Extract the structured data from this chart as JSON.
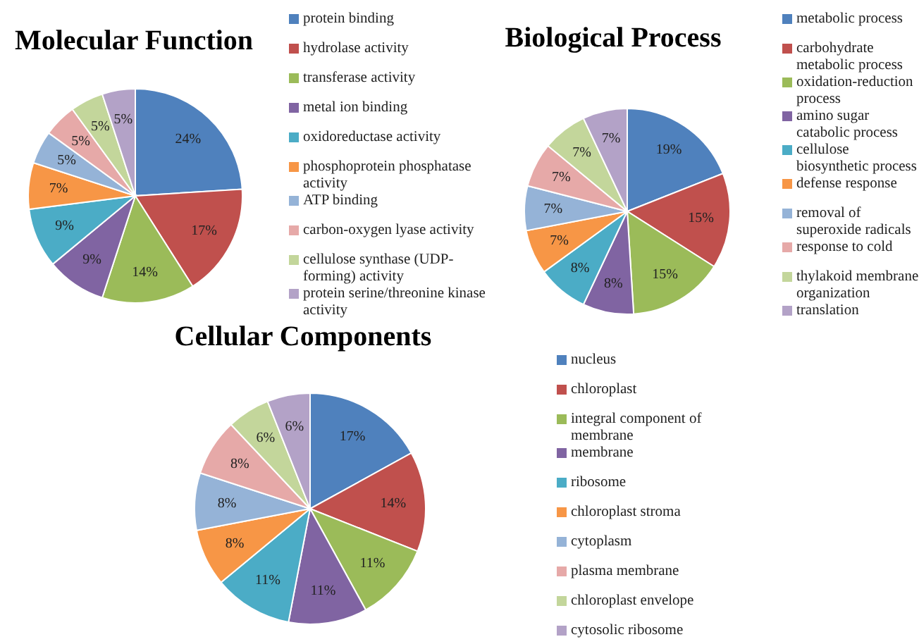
{
  "chart_data": [
    {
      "type": "pie",
      "title": "Molecular Function",
      "categories": [
        "protein binding",
        "hydrolase activity",
        "transferase activity",
        "metal ion binding",
        "oxidoreductase activity",
        "phosphoprotein phosphatase activity",
        "ATP binding",
        "carbon-oxygen lyase activity",
        "cellulose synthase (UDP-forming) activity",
        "protein serine/threonine kinase activity"
      ],
      "values": [
        24,
        17,
        14,
        9,
        9,
        7,
        5,
        5,
        5,
        5
      ],
      "value_labels": [
        "24%",
        "17%",
        "14%",
        "9%",
        "9%",
        "7%",
        "5%",
        "5%",
        "5%",
        "5%"
      ],
      "colors": [
        "#4f81bd",
        "#c0504d",
        "#9bbb59",
        "#8064a2",
        "#4bacc6",
        "#f79646",
        "#95b3d7",
        "#e6a9a8",
        "#c3d69b",
        "#b3a2c7"
      ],
      "legend": "right"
    },
    {
      "type": "pie",
      "title": "Biological Process",
      "categories": [
        "metabolic process",
        "carbohydrate metabolic process",
        "oxidation-reduction process",
        "amino sugar catabolic process",
        "cellulose biosynthetic process",
        "defense response",
        "removal of superoxide radicals",
        "response to cold",
        "thylakoid membrane organization",
        "translation"
      ],
      "values": [
        19,
        15,
        15,
        8,
        8,
        7,
        7,
        7,
        7,
        7
      ],
      "value_labels": [
        "19%",
        "15%",
        "15%",
        "8%",
        "8%",
        "7%",
        "7%",
        "7%",
        "7%",
        "7%"
      ],
      "colors": [
        "#4f81bd",
        "#c0504d",
        "#9bbb59",
        "#8064a2",
        "#4bacc6",
        "#f79646",
        "#95b3d7",
        "#e6a9a8",
        "#c3d69b",
        "#b3a2c7"
      ],
      "legend": "right"
    },
    {
      "type": "pie",
      "title": "Cellular Components",
      "categories": [
        "nucleus",
        "chloroplast",
        "integral component of membrane",
        "membrane",
        "ribosome",
        "chloroplast stroma",
        "cytoplasm",
        "plasma membrane",
        "chloroplast envelope",
        "cytosolic ribosome"
      ],
      "values": [
        17,
        14,
        11,
        11,
        11,
        8,
        8,
        8,
        6,
        6
      ],
      "value_labels": [
        "17%",
        "14%",
        "11%",
        "11%",
        "11%",
        "8%",
        "8%",
        "8%",
        "6%",
        "6%"
      ],
      "colors": [
        "#4f81bd",
        "#c0504d",
        "#9bbb59",
        "#8064a2",
        "#4bacc6",
        "#f79646",
        "#95b3d7",
        "#e6a9a8",
        "#c3d69b",
        "#b3a2c7"
      ],
      "legend": "right"
    }
  ]
}
